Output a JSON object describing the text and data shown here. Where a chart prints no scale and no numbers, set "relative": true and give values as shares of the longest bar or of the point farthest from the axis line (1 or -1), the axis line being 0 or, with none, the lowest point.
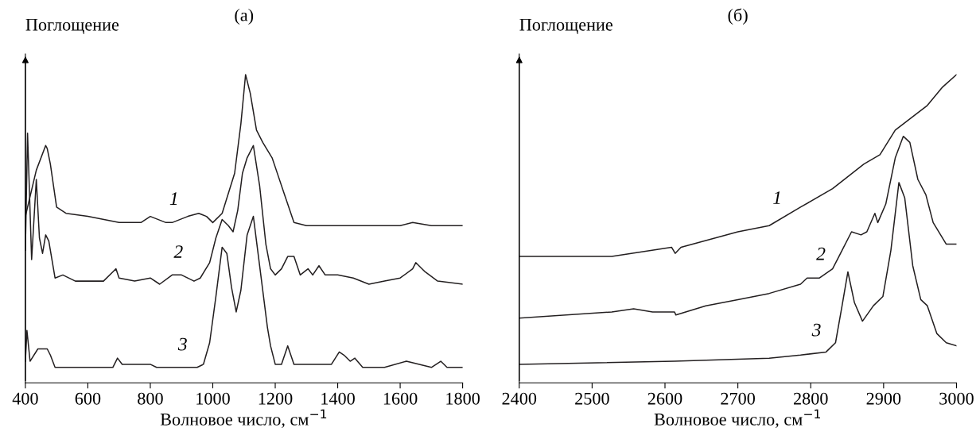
{
  "chart_data": [
    {
      "type": "line",
      "title": "(а)",
      "ylabel": "Поглощение",
      "xlabel": "Волновое число, см$^{−1}$",
      "relative": true,
      "xlim": [
        400,
        1800
      ],
      "xticks": [
        400,
        600,
        800,
        1000,
        1200,
        1400,
        1600,
        1800
      ],
      "grid": false,
      "legend": false,
      "series": [
        {
          "name": "1",
          "color": "#231f20",
          "x": [
            400,
            435,
            465,
            470,
            480,
            490,
            500,
            530,
            600,
            700,
            770,
            800,
            850,
            870,
            920,
            955,
            980,
            1000,
            1030,
            1070,
            1090,
            1105,
            1120,
            1140,
            1160,
            1190,
            1210,
            1230,
            1260,
            1300,
            1600,
            1640,
            1700,
            1800
          ],
          "values": [
            0.54,
            0.69,
            0.77,
            0.76,
            0.71,
            0.64,
            0.57,
            0.55,
            0.54,
            0.52,
            0.52,
            0.54,
            0.52,
            0.52,
            0.54,
            0.55,
            0.54,
            0.52,
            0.55,
            0.68,
            0.84,
            1.0,
            0.94,
            0.82,
            0.78,
            0.73,
            0.67,
            0.61,
            0.52,
            0.51,
            0.51,
            0.52,
            0.51,
            0.51
          ]
        },
        {
          "name": "2",
          "color": "#231f20",
          "x": [
            400,
            407,
            420,
            435,
            445,
            455,
            465,
            475,
            485,
            495,
            520,
            560,
            600,
            650,
            680,
            690,
            700,
            750,
            800,
            830,
            870,
            900,
            940,
            960,
            990,
            1010,
            1030,
            1050,
            1065,
            1080,
            1095,
            1110,
            1130,
            1150,
            1170,
            1185,
            1200,
            1220,
            1240,
            1260,
            1280,
            1305,
            1320,
            1340,
            1360,
            1400,
            1450,
            1500,
            1550,
            1600,
            1640,
            1650,
            1680,
            1720,
            1800
          ],
          "values": [
            0.43,
            0.81,
            0.4,
            0.66,
            0.47,
            0.42,
            0.48,
            0.46,
            0.4,
            0.34,
            0.35,
            0.33,
            0.33,
            0.33,
            0.36,
            0.37,
            0.34,
            0.33,
            0.34,
            0.32,
            0.35,
            0.35,
            0.33,
            0.34,
            0.39,
            0.47,
            0.53,
            0.51,
            0.49,
            0.56,
            0.68,
            0.73,
            0.77,
            0.64,
            0.45,
            0.37,
            0.35,
            0.37,
            0.41,
            0.41,
            0.35,
            0.37,
            0.35,
            0.38,
            0.35,
            0.35,
            0.34,
            0.32,
            0.33,
            0.34,
            0.37,
            0.39,
            0.36,
            0.33,
            0.32
          ]
        },
        {
          "name": "3",
          "color": "#231f20",
          "x": [
            400,
            405,
            415,
            440,
            470,
            480,
            495,
            550,
            680,
            695,
            710,
            800,
            820,
            950,
            970,
            990,
            1010,
            1030,
            1045,
            1060,
            1075,
            1090,
            1110,
            1130,
            1150,
            1175,
            1185,
            1200,
            1220,
            1240,
            1260,
            1300,
            1340,
            1380,
            1405,
            1420,
            1440,
            1455,
            1480,
            1550,
            1620,
            1700,
            1730,
            1750,
            1800
          ],
          "values": [
            0.07,
            0.17,
            0.07,
            0.11,
            0.11,
            0.09,
            0.05,
            0.05,
            0.05,
            0.08,
            0.06,
            0.06,
            0.05,
            0.05,
            0.06,
            0.13,
            0.28,
            0.44,
            0.42,
            0.31,
            0.23,
            0.3,
            0.48,
            0.54,
            0.38,
            0.18,
            0.12,
            0.06,
            0.06,
            0.12,
            0.06,
            0.06,
            0.06,
            0.06,
            0.1,
            0.09,
            0.07,
            0.08,
            0.05,
            0.05,
            0.07,
            0.05,
            0.07,
            0.05,
            0.05
          ]
        }
      ]
    },
    {
      "type": "line",
      "title": "(б)",
      "ylabel": "Поглощение",
      "xlabel": "Волновое число, см$^{−1}$",
      "relative": true,
      "xlim": [
        2400,
        3000
      ],
      "xticks": [
        2400,
        2500,
        2600,
        2700,
        2800,
        2900,
        3000
      ],
      "grid": false,
      "legend": false,
      "series": [
        {
          "name": "1",
          "color": "#231f20",
          "x": [
            2400,
            2527,
            2609,
            2614,
            2622,
            2700,
            2743,
            2786,
            2830,
            2873,
            2895,
            2916,
            2938,
            2960,
            2981,
            3000
          ],
          "values": [
            0.41,
            0.41,
            0.44,
            0.42,
            0.44,
            0.49,
            0.51,
            0.57,
            0.63,
            0.71,
            0.74,
            0.82,
            0.86,
            0.9,
            0.96,
            1.0
          ]
        },
        {
          "name": "2",
          "color": "#231f20",
          "x": [
            2400,
            2527,
            2557,
            2583,
            2613,
            2615,
            2656,
            2700,
            2743,
            2786,
            2795,
            2812,
            2830,
            2843,
            2856,
            2869,
            2877,
            2888,
            2892,
            2903,
            2916,
            2927,
            2936,
            2947,
            2958,
            2968,
            2986,
            3000
          ],
          "values": [
            0.21,
            0.23,
            0.24,
            0.23,
            0.23,
            0.22,
            0.25,
            0.27,
            0.29,
            0.32,
            0.34,
            0.34,
            0.37,
            0.43,
            0.49,
            0.48,
            0.49,
            0.55,
            0.52,
            0.58,
            0.73,
            0.8,
            0.78,
            0.66,
            0.61,
            0.52,
            0.45,
            0.45
          ]
        },
        {
          "name": "3",
          "color": "#231f20",
          "x": [
            2400,
            2613,
            2743,
            2786,
            2821,
            2834,
            2843,
            2851,
            2860,
            2871,
            2886,
            2899,
            2910,
            2921,
            2929,
            2940,
            2951,
            2960,
            2973,
            2986,
            3000
          ],
          "values": [
            0.06,
            0.07,
            0.08,
            0.09,
            0.1,
            0.13,
            0.25,
            0.36,
            0.26,
            0.2,
            0.25,
            0.28,
            0.43,
            0.65,
            0.6,
            0.38,
            0.27,
            0.25,
            0.16,
            0.13,
            0.12
          ]
        }
      ]
    }
  ]
}
